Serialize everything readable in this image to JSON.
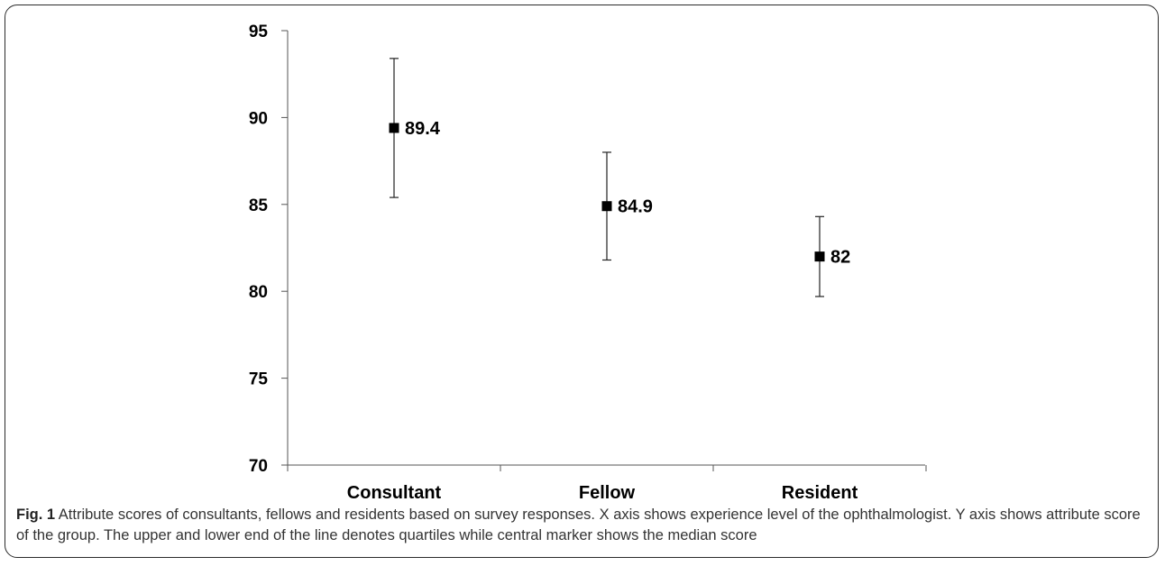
{
  "chart_data": {
    "type": "scatter",
    "categories": [
      "Consultant",
      "Fellow",
      "Resident"
    ],
    "medians": [
      89.4,
      84.9,
      82
    ],
    "quartiles": [
      [
        85.4,
        93.4
      ],
      [
        81.8,
        88.0
      ],
      [
        79.7,
        84.3
      ]
    ],
    "data_labels": [
      "89.4",
      "84.9",
      "82"
    ],
    "ylim": [
      70,
      95
    ],
    "yticks": [
      70,
      75,
      80,
      85,
      90,
      95
    ],
    "grid": false,
    "legend": "none"
  },
  "caption": {
    "label": "Fig. 1",
    "text": "Attribute scores of consultants, fellows and residents based on survey responses. X axis shows experience level of the ophthalmologist. Y axis shows attribute score of the group. The upper and lower end of the line denotes quartiles while central marker shows the median score"
  }
}
